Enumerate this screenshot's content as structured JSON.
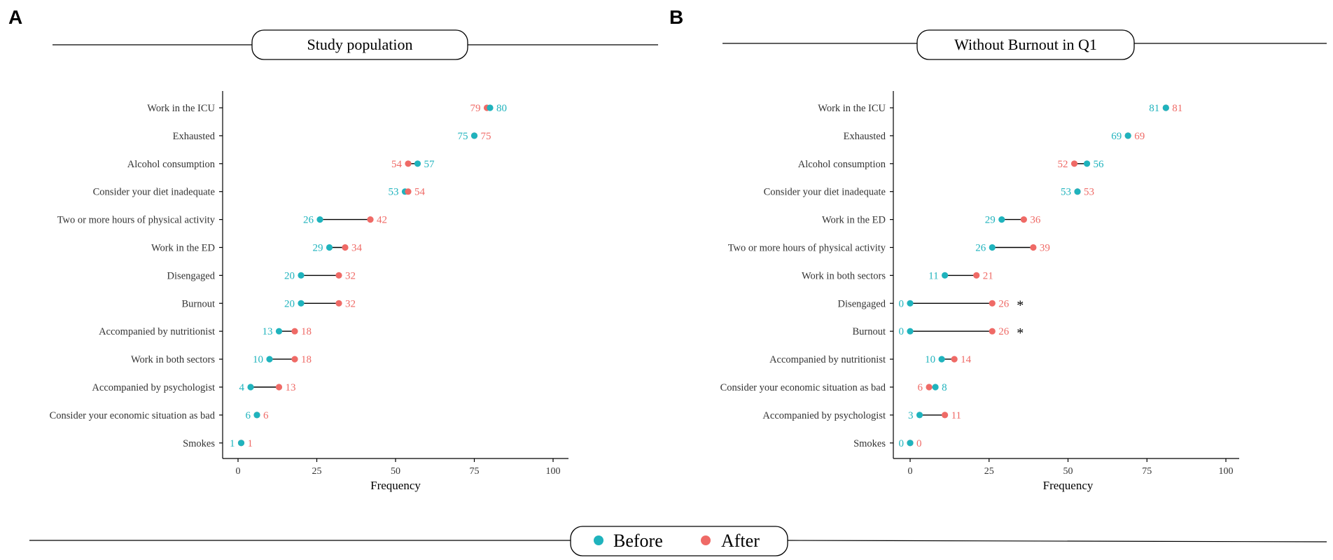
{
  "legend": {
    "before_label": "Before",
    "after_label": "After"
  },
  "colors": {
    "before": "#1fb3bd",
    "after": "#ef6a66"
  },
  "chart_data": [
    {
      "type": "dumbbell",
      "panel": "A",
      "title": "Study population",
      "xlabel": "Frequency",
      "xlim": [
        0,
        100
      ],
      "xticks": [
        0,
        25,
        50,
        75,
        100
      ],
      "categories": [
        "Work in the ICU",
        "Exhausted",
        "Alcohol consumption",
        "Consider your diet inadequate",
        "Two or more hours of physical activity",
        "Work in the ED",
        "Disengaged",
        "Burnout",
        "Accompanied by nutritionist",
        "Work in both sectors",
        "Accompanied by psychologist",
        "Consider your economic situation as bad",
        "Smokes"
      ],
      "series": [
        {
          "name": "Before",
          "values": [
            80,
            75,
            57,
            53,
            26,
            29,
            20,
            20,
            13,
            10,
            4,
            6,
            1
          ]
        },
        {
          "name": "After",
          "values": [
            79,
            75,
            54,
            54,
            42,
            34,
            32,
            32,
            18,
            18,
            13,
            6,
            1
          ]
        }
      ],
      "annotations": []
    },
    {
      "type": "dumbbell",
      "panel": "B",
      "title": "Without Burnout in Q1",
      "xlabel": "Frequency",
      "xlim": [
        0,
        100
      ],
      "xticks": [
        0,
        25,
        50,
        75,
        100
      ],
      "categories": [
        "Work in the ICU",
        "Exhausted",
        "Alcohol consumption",
        "Consider your diet inadequate",
        "Work in the ED",
        "Two or more hours of physical activity",
        "Work in both sectors",
        "Disengaged",
        "Burnout",
        "Accompanied by nutritionist",
        "Consider your economic situation as bad",
        "Accompanied by psychologist",
        "Smokes"
      ],
      "series": [
        {
          "name": "Before",
          "values": [
            81,
            69,
            56,
            53,
            29,
            26,
            11,
            0,
            0,
            10,
            8,
            3,
            0
          ]
        },
        {
          "name": "After",
          "values": [
            81,
            69,
            52,
            53,
            36,
            39,
            21,
            26,
            26,
            14,
            6,
            11,
            0
          ]
        }
      ],
      "annotations": [
        {
          "category": "Disengaged",
          "text": "*"
        },
        {
          "category": "Burnout",
          "text": "*"
        }
      ]
    }
  ]
}
